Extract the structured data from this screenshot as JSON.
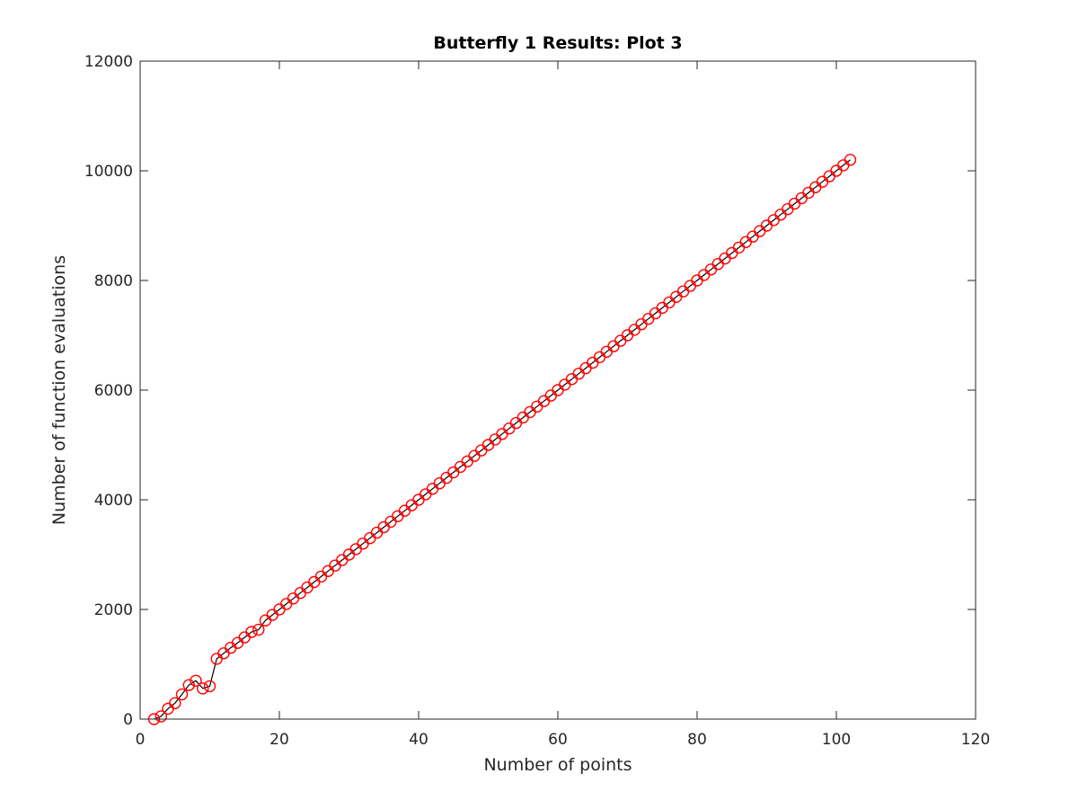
{
  "chart_data": {
    "type": "line",
    "title": "Butterfly 1 Results:  Plot 3",
    "xlabel": "Number of points",
    "ylabel": "Number of function evaluations",
    "xlim": [
      0,
      120
    ],
    "ylim": [
      0,
      12000
    ],
    "xticks": [
      0,
      20,
      40,
      60,
      80,
      100,
      120
    ],
    "yticks": [
      0,
      2000,
      4000,
      6000,
      8000,
      10000,
      12000
    ],
    "grid": false,
    "colors": {
      "line": "#000000",
      "marker": "#ff0000",
      "axes": "#262626"
    },
    "series": [
      {
        "x": [
          2,
          3,
          4,
          5,
          6,
          7,
          8,
          9,
          10,
          11,
          12,
          13,
          14,
          15,
          16,
          17,
          18,
          19,
          20,
          21,
          22,
          23,
          24,
          25,
          26,
          27,
          28,
          29,
          30,
          31,
          32,
          33,
          34,
          35,
          36,
          37,
          38,
          39,
          40,
          41,
          42,
          43,
          44,
          45,
          46,
          47,
          48,
          49,
          50,
          51,
          52,
          53,
          54,
          55,
          56,
          57,
          58,
          59,
          60,
          61,
          62,
          63,
          64,
          65,
          66,
          67,
          68,
          69,
          70,
          71,
          72,
          73,
          74,
          75,
          76,
          77,
          78,
          79,
          80,
          81,
          82,
          83,
          84,
          85,
          86,
          87,
          88,
          89,
          90,
          91,
          92,
          93,
          94,
          95,
          96,
          97,
          98,
          99,
          100,
          101,
          102
        ],
        "y": [
          0,
          50,
          190,
          290,
          450,
          620,
          700,
          560,
          600,
          1100,
          1200,
          1300,
          1390,
          1490,
          1590,
          1630,
          1800,
          1900,
          2000,
          2100,
          2200,
          2300,
          2400,
          2500,
          2600,
          2700,
          2800,
          2900,
          3000,
          3100,
          3200,
          3300,
          3400,
          3500,
          3600,
          3700,
          3800,
          3900,
          4000,
          4100,
          4200,
          4300,
          4400,
          4500,
          4600,
          4700,
          4800,
          4900,
          5000,
          5100,
          5200,
          5300,
          5400,
          5500,
          5600,
          5700,
          5800,
          5900,
          6000,
          6100,
          6200,
          6300,
          6400,
          6500,
          6600,
          6700,
          6800,
          6900,
          7000,
          7100,
          7200,
          7300,
          7400,
          7500,
          7600,
          7700,
          7800,
          7900,
          8000,
          8100,
          8200,
          8300,
          8400,
          8500,
          8600,
          8700,
          8800,
          8900,
          9000,
          9100,
          9200,
          9300,
          9400,
          9500,
          9600,
          9700,
          9800,
          9900,
          10000,
          10100,
          10200
        ]
      }
    ]
  }
}
